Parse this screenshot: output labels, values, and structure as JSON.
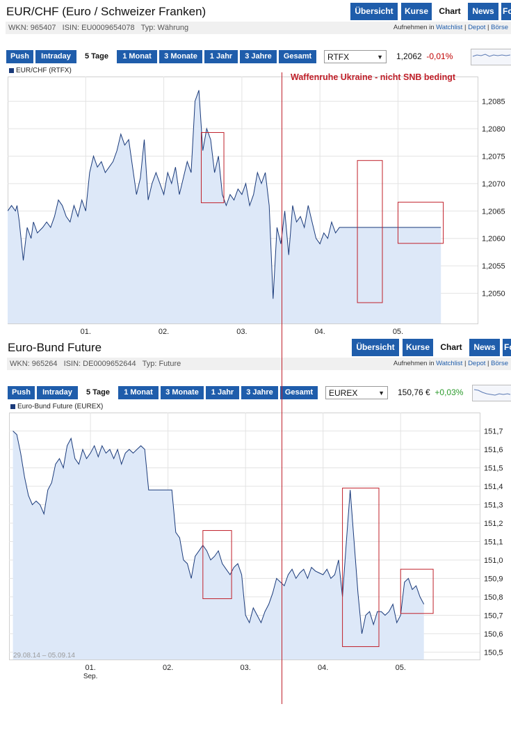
{
  "panels": [
    {
      "title": "EUR/CHF (Euro / Schweizer Franken)",
      "nav": {
        "overview": "Übersicht",
        "quotes": "Kurse",
        "chart": "Chart",
        "news": "News",
        "more": "Fo"
      },
      "info": {
        "wkn": "WKN: 965407",
        "isin": "ISIN: EU0009654078",
        "type": "Typ: Währung"
      },
      "watchlist_prefix": "Aufnehmen in",
      "links": {
        "watchlist": "Watchlist",
        "depot": "Depot",
        "boerse": "Börse"
      },
      "ranges": {
        "push": "Push",
        "intraday": "Intraday",
        "five_days": "5 Tage",
        "one_month": "1 Monat",
        "three_months": "3 Monate",
        "one_year": "1 Jahr",
        "three_years": "3 Jahre",
        "total": "Gesamt"
      },
      "exchange": "RTFX",
      "price": "1,2062",
      "change": "-0,01%",
      "legend": "EUR/CHF (RTFX)",
      "date_range": ""
    },
    {
      "title": "Euro-Bund Future",
      "nav": {
        "overview": "Übersicht",
        "quotes": "Kurse",
        "chart": "Chart",
        "news": "News",
        "more": "Fo"
      },
      "info": {
        "wkn": "WKN: 965264",
        "isin": "ISIN: DE0009652644",
        "type": "Typ: Future"
      },
      "watchlist_prefix": "Aufnehmen in",
      "links": {
        "watchlist": "Watchlist",
        "depot": "Depot",
        "boerse": "Börse"
      },
      "ranges": {
        "push": "Push",
        "intraday": "Intraday",
        "five_days": "5 Tage",
        "one_month": "1 Monat",
        "three_months": "3 Monate",
        "one_year": "1 Jahr",
        "three_years": "3 Jahre",
        "total": "Gesamt"
      },
      "exchange": "EUREX",
      "price": "150,76 €",
      "change": "+0,03%",
      "legend": "Euro-Bund Future (EUREX)",
      "date_range": "29.08.14 – 05.09.14"
    }
  ],
  "annotation": "Waffenruhe Ukraine - nicht SNB bedingt",
  "colors": {
    "nav": "#1f5dab",
    "line": "#1a3a7a",
    "fill": "#dde8f8",
    "annotation": "#c0202a"
  },
  "chart_data": [
    {
      "type": "area",
      "series": [
        {
          "name": "EUR/CHF (RTFX)",
          "x": [
            0,
            0.05,
            0.1,
            0.12,
            0.15,
            0.2,
            0.25,
            0.3,
            0.33,
            0.38,
            0.45,
            0.5,
            0.55,
            0.6,
            0.65,
            0.7,
            0.75,
            0.8,
            0.85,
            0.9,
            0.95,
            1.0,
            1.05,
            1.1,
            1.15,
            1.2,
            1.25,
            1.3,
            1.35,
            1.4,
            1.45,
            1.5,
            1.55,
            1.6,
            1.65,
            1.7,
            1.75,
            1.8,
            1.85,
            1.9,
            1.95,
            2.0,
            2.05,
            2.1,
            2.15,
            2.2,
            2.25,
            2.3,
            2.35,
            2.4,
            2.45,
            2.5,
            2.55,
            2.6,
            2.65,
            2.7,
            2.75,
            2.8,
            2.85,
            2.9,
            2.95,
            3.0,
            3.05,
            3.1,
            3.15,
            3.2,
            3.25,
            3.3,
            3.35,
            3.4,
            3.45,
            3.5,
            3.55,
            3.6,
            3.65,
            3.7,
            3.75,
            3.8,
            3.85,
            3.9,
            3.95,
            4.0,
            4.05,
            4.1,
            4.15,
            4.2,
            4.25,
            4.3,
            4.35,
            4.4,
            4.45,
            4.5,
            4.55,
            4.6,
            4.65,
            4.7,
            4.75,
            4.8,
            4.85,
            4.9,
            4.95,
            5.0,
            5.05,
            5.1,
            5.15,
            5.2,
            5.25,
            5.3,
            5.35,
            5.4,
            5.45,
            5.5,
            5.55
          ],
          "values": [
            1.2065,
            1.2066,
            1.2065,
            1.2066,
            1.2063,
            1.2056,
            1.2062,
            1.206,
            1.2063,
            1.2061,
            1.2062,
            1.2063,
            1.2062,
            1.2064,
            1.2067,
            1.2066,
            1.2064,
            1.2063,
            1.2066,
            1.2064,
            1.2067,
            1.2065,
            1.2072,
            1.2075,
            1.2073,
            1.2074,
            1.2072,
            1.2073,
            1.2074,
            1.2076,
            1.2079,
            1.2077,
            1.2078,
            1.2073,
            1.2068,
            1.2071,
            1.2078,
            1.2067,
            1.207,
            1.2072,
            1.207,
            1.2068,
            1.2072,
            1.207,
            1.2073,
            1.2068,
            1.2071,
            1.2074,
            1.2072,
            1.2085,
            1.2087,
            1.2076,
            1.208,
            1.2078,
            1.2072,
            1.2075,
            1.2068,
            1.2066,
            1.2068,
            1.2067,
            1.2069,
            1.2068,
            1.207,
            1.2066,
            1.2068,
            1.2072,
            1.207,
            1.2072,
            1.2066,
            1.2049,
            1.2062,
            1.2059,
            1.2065,
            1.2057,
            1.2066,
            1.2063,
            1.2064,
            1.2062,
            1.2066,
            1.2063,
            1.206,
            1.2059,
            1.2061,
            1.206,
            1.2063,
            1.2061,
            1.2062,
            1.2062,
            1.2062,
            1.2062,
            1.2062,
            1.2062,
            1.2062,
            1.2062,
            1.2062,
            1.2062,
            1.2062,
            1.2062,
            1.2062,
            1.2062,
            1.2062,
            1.2062,
            1.2062,
            1.2062,
            1.2062,
            1.2062,
            1.2062,
            1.2062,
            1.2062,
            1.2062,
            1.2062,
            1.2062,
            1.2062
          ]
        }
      ],
      "xticks": [
        {
          "x": 1,
          "label": "01."
        },
        {
          "x": 2,
          "label": "02."
        },
        {
          "x": 3,
          "label": "03."
        },
        {
          "x": 4,
          "label": "04."
        },
        {
          "x": 5,
          "label": "05."
        }
      ],
      "yticks": [
        "1,2050",
        "1,2055",
        "1,2060",
        "1,2065",
        "1,2070",
        "1,2075",
        "1,2080",
        "1,2085"
      ],
      "yvals": [
        1.205,
        1.2055,
        1.206,
        1.2065,
        1.207,
        1.2075,
        1.208,
        1.2085
      ],
      "xlim": [
        0,
        6.02
      ],
      "ylim": [
        1.20445,
        1.20895
      ],
      "grid": true,
      "highlights": [
        [
          2.48,
          2.77,
          1.20665,
          1.20793
        ],
        [
          4.48,
          4.8,
          1.20483,
          1.20742
        ],
        [
          5.0,
          5.58,
          1.20591,
          1.20666
        ]
      ]
    },
    {
      "type": "area",
      "series": [
        {
          "name": "Euro-Bund Future (EUREX)",
          "x": [
            0,
            0.05,
            0.1,
            0.15,
            0.2,
            0.25,
            0.3,
            0.35,
            0.4,
            0.45,
            0.5,
            0.55,
            0.6,
            0.65,
            0.7,
            0.75,
            0.8,
            0.85,
            0.9,
            0.95,
            1.0,
            1.05,
            1.1,
            1.15,
            1.2,
            1.25,
            1.3,
            1.35,
            1.4,
            1.45,
            1.5,
            1.55,
            1.6,
            1.65,
            1.7,
            1.75,
            1.8,
            1.85,
            1.9,
            1.95,
            2.0,
            2.05,
            2.1,
            2.15,
            2.2,
            2.25,
            2.3,
            2.35,
            2.4,
            2.45,
            2.5,
            2.55,
            2.6,
            2.65,
            2.7,
            2.75,
            2.8,
            2.85,
            2.9,
            2.95,
            3.0,
            3.05,
            3.1,
            3.15,
            3.2,
            3.25,
            3.3,
            3.35,
            3.4,
            3.45,
            3.5,
            3.55,
            3.6,
            3.65,
            3.7,
            3.75,
            3.8,
            3.85,
            3.9,
            3.95,
            4.0,
            4.05,
            4.1,
            4.15,
            4.2,
            4.25,
            4.3,
            4.35,
            4.4,
            4.45,
            4.5,
            4.55,
            4.6,
            4.65,
            4.7,
            4.75,
            4.8,
            4.85,
            4.9,
            4.95,
            5.0,
            5.05,
            5.1,
            5.15,
            5.2,
            5.25,
            5.3
          ],
          "values": [
            151.7,
            151.68,
            151.58,
            151.45,
            151.35,
            151.3,
            151.32,
            151.3,
            151.25,
            151.38,
            151.42,
            151.52,
            151.55,
            151.5,
            151.62,
            151.66,
            151.55,
            151.52,
            151.6,
            151.55,
            151.58,
            151.62,
            151.56,
            151.62,
            151.58,
            151.6,
            151.55,
            151.6,
            151.52,
            151.58,
            151.6,
            151.58,
            151.6,
            151.62,
            151.6,
            151.38,
            151.38,
            151.38,
            151.38,
            151.38,
            151.38,
            151.38,
            151.15,
            151.12,
            151.0,
            150.98,
            150.9,
            151.02,
            151.05,
            151.08,
            151.05,
            151.0,
            151.02,
            151.05,
            150.98,
            150.95,
            150.92,
            150.96,
            150.98,
            150.92,
            150.7,
            150.66,
            150.74,
            150.7,
            150.66,
            150.72,
            150.76,
            150.82,
            150.9,
            150.88,
            150.86,
            150.92,
            150.95,
            150.9,
            150.93,
            150.95,
            150.9,
            150.96,
            150.94,
            150.93,
            150.92,
            150.95,
            150.9,
            150.92,
            151.0,
            150.8,
            151.1,
            151.38,
            151.1,
            150.82,
            150.6,
            150.7,
            150.72,
            150.65,
            150.72,
            150.72,
            150.7,
            150.72,
            150.76,
            150.66,
            150.7,
            150.88,
            150.9,
            150.84,
            150.86,
            150.8,
            150.76
          ]
        }
      ],
      "xticks": [
        {
          "x": 1,
          "label": "01.",
          "sub": "Sep."
        },
        {
          "x": 2,
          "label": "02."
        },
        {
          "x": 3,
          "label": "03."
        },
        {
          "x": 4,
          "label": "04."
        },
        {
          "x": 5,
          "label": "05."
        }
      ],
      "yticks": [
        "150,5",
        "150,6",
        "150,7",
        "150,8",
        "150,9",
        "151,0",
        "151,1",
        "151,2",
        "151,3",
        "151,4",
        "151,5",
        "151,6",
        "151,7"
      ],
      "yvals": [
        150.5,
        150.6,
        150.7,
        150.8,
        150.9,
        151.0,
        151.1,
        151.2,
        151.3,
        151.4,
        151.5,
        151.6,
        151.7
      ],
      "xlim": [
        -0.05,
        6.02
      ],
      "ylim": [
        150.46,
        151.8
      ],
      "grid": true,
      "highlights": [
        [
          2.45,
          2.82,
          150.79,
          151.16
        ],
        [
          4.25,
          4.72,
          150.53,
          151.39
        ],
        [
          5.0,
          5.42,
          150.71,
          150.95
        ]
      ]
    }
  ]
}
